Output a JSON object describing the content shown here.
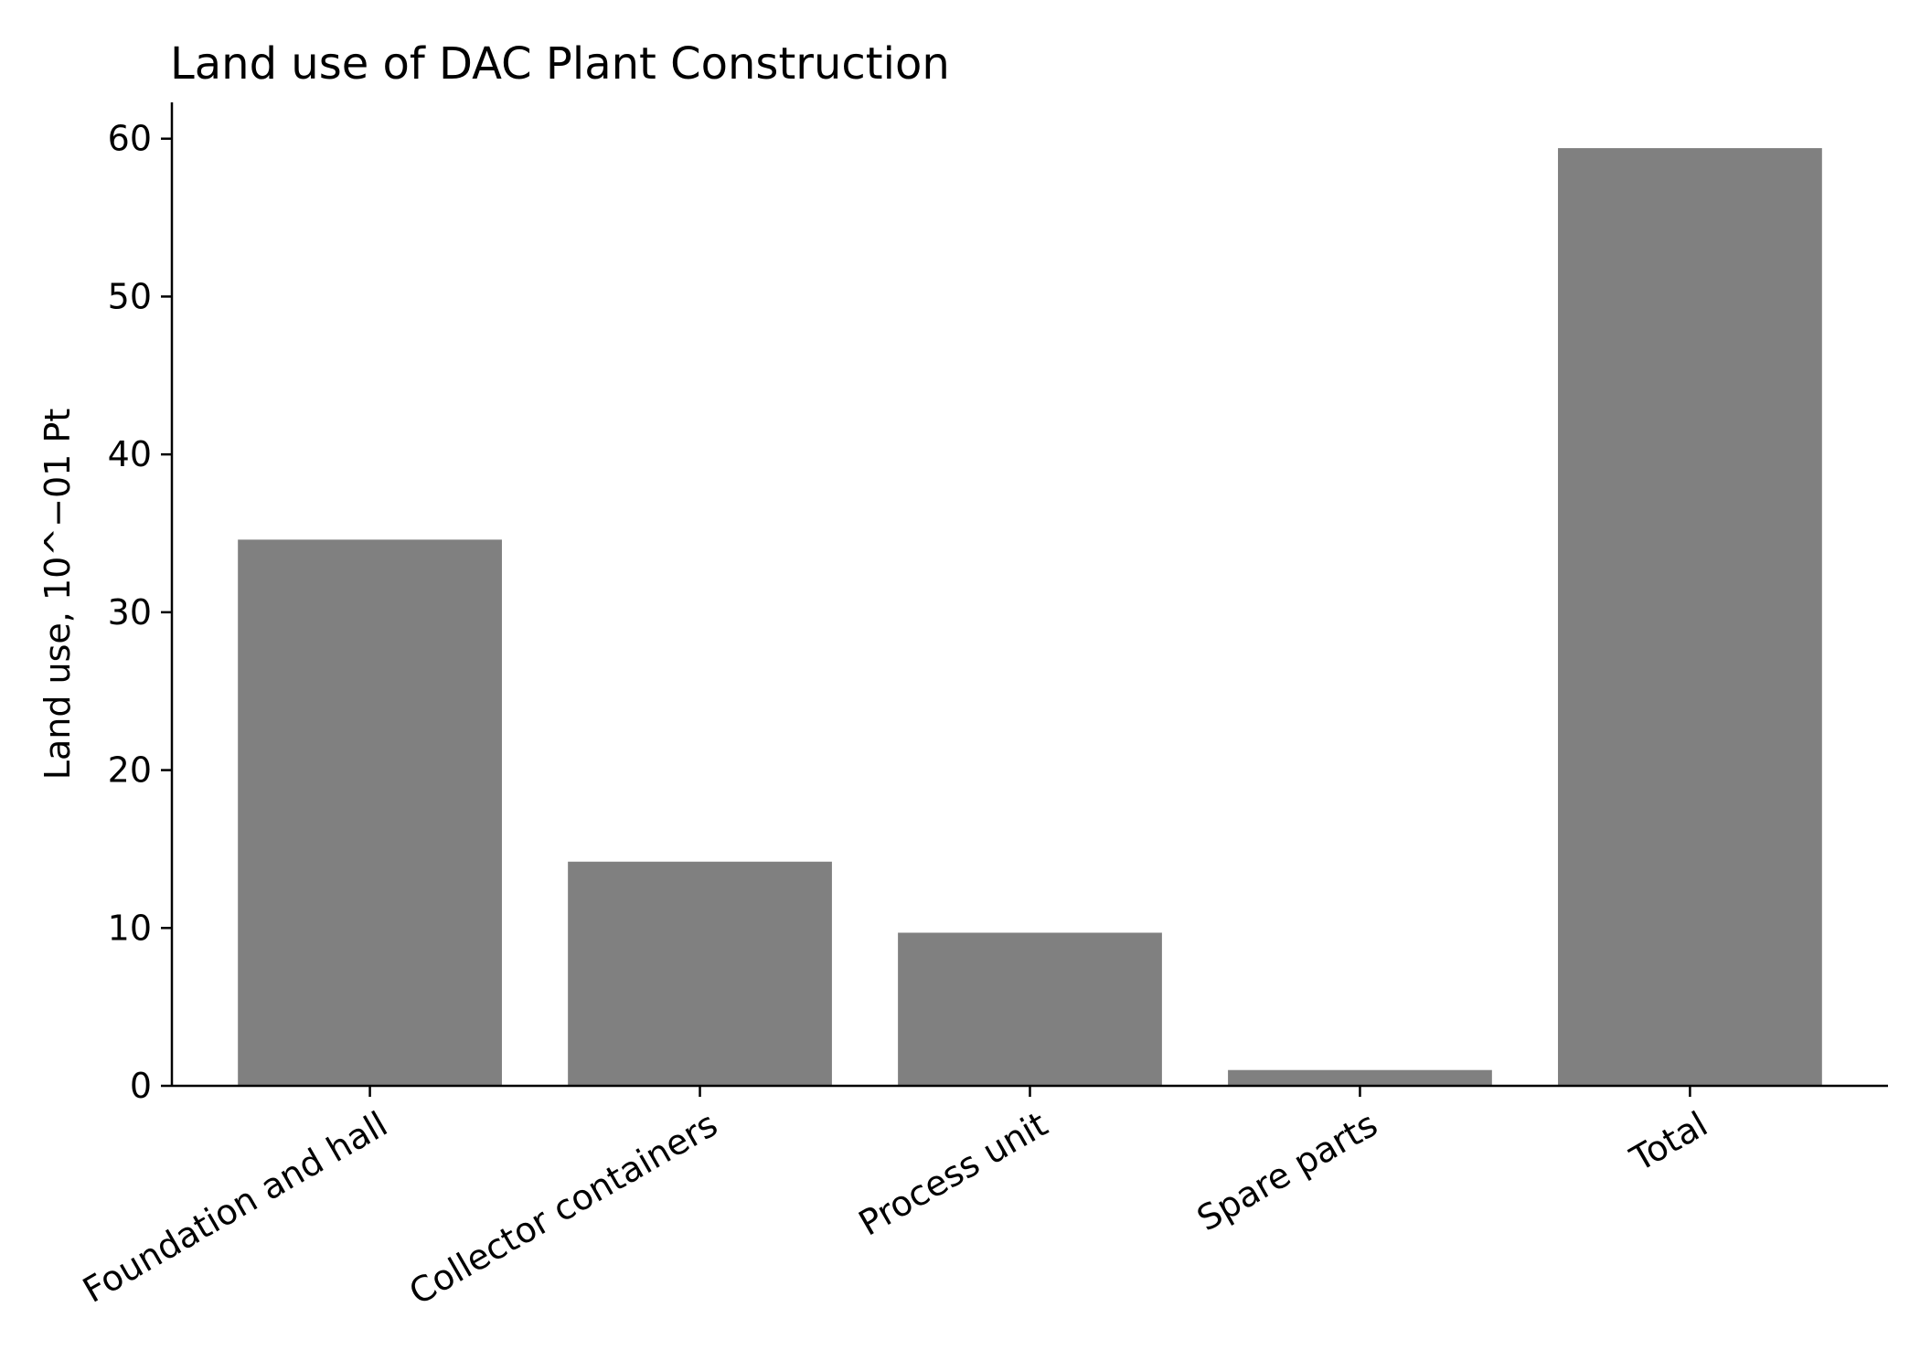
{
  "chart_data": {
    "type": "bar",
    "title": "Land use of DAC Plant Construction",
    "xlabel": "",
    "ylabel": "Land use, 10^−01 Pt",
    "categories": [
      "Foundation and hall",
      "Collector containers",
      "Process unit",
      "Spare parts",
      "Total"
    ],
    "values": [
      34.6,
      14.2,
      9.7,
      1.0,
      59.4
    ],
    "ylim": [
      0,
      62.3
    ],
    "yticks": [
      0,
      10,
      20,
      30,
      40,
      50,
      60
    ],
    "bar_color": "#808080",
    "grid": false,
    "legend": false
  }
}
